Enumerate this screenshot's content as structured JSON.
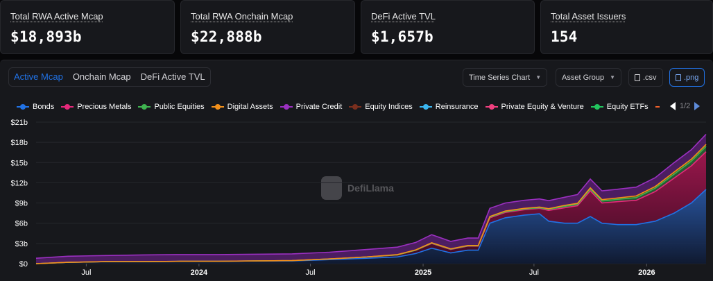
{
  "stats": [
    {
      "label": "Total RWA Active Mcap",
      "value": "$18,893b"
    },
    {
      "label": "Total RWA Onchain Mcap",
      "value": "$22,888b"
    },
    {
      "label": "DeFi Active TVL",
      "value": "$1,657b"
    },
    {
      "label": "Total Asset Issuers",
      "value": "154"
    }
  ],
  "tabs": [
    "Active Mcap",
    "Onchain Mcap",
    "DeFi Active TVL"
  ],
  "active_tab": "Active Mcap",
  "controls": {
    "chart_type": "Time Series Chart",
    "group_by": "Asset Group",
    "csv": ".csv",
    "png": ".png"
  },
  "legend": {
    "page": "1/2"
  },
  "watermark": "DefiLlama",
  "colors": {
    "accent": "#2172e5",
    "background": "#070709",
    "panel": "#17181c"
  },
  "chart_data": {
    "type": "area",
    "stacked": true,
    "y_unit": "b",
    "ylim": [
      0,
      21
    ],
    "y_ticks": [
      "$0",
      "$3b",
      "$6b",
      "$9b",
      "$12b",
      "$15b",
      "$18b",
      "$21b"
    ],
    "x_ticks": [
      {
        "label": "Jul",
        "date": "2023-07-01",
        "bold": false
      },
      {
        "label": "2024",
        "date": "2024-01-01",
        "bold": true
      },
      {
        "label": "Jul",
        "date": "2024-07-01",
        "bold": false
      },
      {
        "label": "2025",
        "date": "2025-01-01",
        "bold": true
      },
      {
        "label": "Jul",
        "date": "2025-07-01",
        "bold": false
      },
      {
        "label": "2026",
        "date": "2026-01-01",
        "bold": true
      }
    ],
    "x": [
      "2023-04-10",
      "2023-06-01",
      "2023-08-01",
      "2023-10-01",
      "2023-12-01",
      "2024-02-01",
      "2024-04-01",
      "2024-06-01",
      "2024-08-01",
      "2024-10-01",
      "2024-11-20",
      "2024-12-20",
      "2025-01-15",
      "2025-02-15",
      "2025-03-15",
      "2025-04-01",
      "2025-04-20",
      "2025-05-15",
      "2025-06-15",
      "2025-07-10",
      "2025-07-25",
      "2025-08-20",
      "2025-09-10",
      "2025-10-01",
      "2025-10-20",
      "2025-11-15",
      "2025-12-15",
      "2026-01-15",
      "2026-02-15",
      "2026-03-15",
      "2026-04-08"
    ],
    "series": [
      {
        "name": "Bonds",
        "color": "#2172e5",
        "values": [
          0.0,
          0.2,
          0.3,
          0.3,
          0.35,
          0.35,
          0.4,
          0.4,
          0.6,
          0.8,
          1.0,
          1.5,
          2.3,
          1.6,
          2.0,
          2.0,
          6.0,
          6.8,
          7.2,
          7.4,
          6.3,
          6.0,
          6.0,
          7.0,
          6.0,
          5.8,
          5.8,
          6.3,
          7.5,
          9.0,
          11.0
        ]
      },
      {
        "name": "Precious Metals",
        "color": "#e6287b",
        "values": [
          0.0,
          0.0,
          0.0,
          0.0,
          0.0,
          0.0,
          0.0,
          0.05,
          0.1,
          0.2,
          0.3,
          0.5,
          0.7,
          0.5,
          0.6,
          0.6,
          0.8,
          0.8,
          0.8,
          0.8,
          1.6,
          2.3,
          2.6,
          3.8,
          3.0,
          3.4,
          3.6,
          4.4,
          5.2,
          5.5,
          5.6
        ]
      },
      {
        "name": "Public Equities",
        "color": "#3fb450",
        "values": [
          0.0,
          0.0,
          0.0,
          0.0,
          0.0,
          0.0,
          0.0,
          0.0,
          0.0,
          0.0,
          0.0,
          0.0,
          0.05,
          0.05,
          0.05,
          0.05,
          0.1,
          0.1,
          0.1,
          0.1,
          0.15,
          0.2,
          0.2,
          0.25,
          0.3,
          0.35,
          0.4,
          0.5,
          0.6,
          0.7,
          0.8
        ]
      },
      {
        "name": "Digital Assets",
        "color": "#f2901b",
        "values": [
          0.0,
          0.0,
          0.0,
          0.0,
          0.0,
          0.0,
          0.0,
          0.0,
          0.0,
          0.0,
          0.05,
          0.05,
          0.05,
          0.05,
          0.05,
          0.05,
          0.1,
          0.1,
          0.1,
          0.1,
          0.1,
          0.15,
          0.15,
          0.2,
          0.2,
          0.2,
          0.25,
          0.25,
          0.3,
          0.3,
          0.3
        ]
      },
      {
        "name": "Private Credit",
        "color": "#9b30c1",
        "values": [
          0.8,
          0.9,
          0.9,
          1.0,
          1.0,
          1.0,
          1.0,
          1.0,
          1.0,
          1.1,
          1.1,
          1.1,
          1.2,
          1.1,
          1.1,
          1.1,
          1.2,
          1.2,
          1.2,
          1.2,
          1.2,
          1.2,
          1.3,
          1.3,
          1.3,
          1.3,
          1.3,
          1.3,
          1.4,
          1.4,
          1.5
        ]
      }
    ]
  }
}
